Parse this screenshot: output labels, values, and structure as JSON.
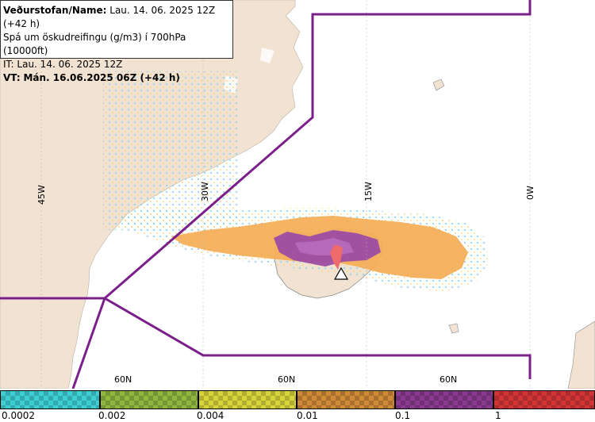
{
  "header": {
    "line1_label": "Veðurstofan/Name:",
    "line1_value": "Lau. 14. 06. 2025 12Z (+42 h)",
    "line2": "Spá um öskudreifingu (g/m3) í 700hPa (10000ft)",
    "line3": "IT: Lau. 14. 06. 2025 12Z",
    "line4_label": "VT:",
    "line4_value": "Mán. 16.06.2025 06Z (+42 h)"
  },
  "map": {
    "longitude_labels": [
      "45W",
      "30W",
      "15W",
      "0W"
    ],
    "latitude_labels": [
      "60N",
      "60N",
      "60N"
    ],
    "land_color": "#f2e2d2",
    "boundary_color": "#7b1f8a",
    "ash_colors": {
      "low": "#9fd9e8",
      "mid": "#f3c05a",
      "orange": "#f5ad55",
      "purple": "#9c4ca3",
      "red": "#ef6a6a"
    },
    "volcano_marker": "triangle-icon"
  },
  "legend": {
    "labels": [
      "0.0002",
      "0.002",
      "0.004",
      "0.01",
      "0.1",
      "1"
    ],
    "colors": [
      "#3ecfd3",
      "#8fb73d",
      "#d8d43c",
      "#cf8a36",
      "#8a3a8f",
      "#d23436"
    ]
  }
}
